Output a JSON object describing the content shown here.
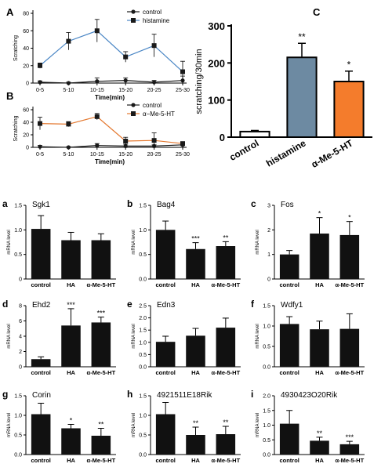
{
  "chart_data": [
    {
      "id": "A",
      "panel_label": "A",
      "type": "line",
      "x": [
        "0-5",
        "5-10",
        "10-15",
        "15-20",
        "20-25",
        "25-30"
      ],
      "xlabel": "Time(min)",
      "ylabel": "Scratching",
      "ylim": [
        0,
        80
      ],
      "yticks": [
        0,
        20,
        40,
        60,
        80
      ],
      "legend": "top-right",
      "series": [
        {
          "name": "control",
          "marker": "circle",
          "color": "#1a1a1a",
          "values": [
            1,
            0,
            2,
            3,
            1,
            3
          ],
          "errors": [
            1.5,
            1,
            4,
            3,
            2,
            5
          ]
        },
        {
          "name": "histamine",
          "marker": "square",
          "color": "#4a86c5",
          "values": [
            20,
            48,
            60,
            30,
            43,
            13
          ],
          "errors": [
            3,
            10,
            13,
            6,
            13,
            12
          ]
        }
      ]
    },
    {
      "id": "B",
      "panel_label": "B",
      "type": "line",
      "x": [
        "0-5",
        "5-10",
        "10-15",
        "15-20",
        "20-25",
        "25-30"
      ],
      "xlabel": "Time(min)",
      "ylabel": "Scratching",
      "ylim": [
        0,
        60
      ],
      "yticks": [
        0,
        20,
        40,
        60
      ],
      "legend": "top-right",
      "series": [
        {
          "name": "control",
          "marker": "circle",
          "color": "#1a1a1a",
          "values": [
            1,
            0,
            3,
            2,
            2,
            4
          ],
          "errors": [
            2,
            1,
            3,
            3,
            2,
            2
          ]
        },
        {
          "name": "α−Me-5-HT",
          "marker": "square",
          "color": "#e4782f",
          "values": [
            38,
            37,
            49,
            10,
            11,
            6
          ],
          "errors": [
            10,
            4,
            5,
            6,
            12,
            2
          ]
        }
      ]
    },
    {
      "id": "C",
      "panel_label": "C",
      "type": "bar",
      "categories": [
        "control",
        "histamine",
        "α-Me-5-HT"
      ],
      "values": [
        15,
        215,
        150
      ],
      "errors": [
        3,
        38,
        28
      ],
      "colors": [
        "#ffffff",
        "#6d8aa2",
        "#f47c2c"
      ],
      "significance": [
        "",
        "**",
        "*"
      ],
      "ylabel": "scratching/30min",
      "ylim": [
        0,
        300
      ],
      "yticks": [
        0,
        100,
        200,
        300
      ]
    },
    {
      "id": "a",
      "panel_label": "a",
      "type": "bar",
      "title": "Sgk1",
      "categories": [
        "control",
        "HA",
        "α-Me-5-HT"
      ],
      "values": [
        1.02,
        0.79,
        0.79
      ],
      "errors": [
        0.27,
        0.16,
        0.13
      ],
      "significance": [
        "",
        "",
        ""
      ],
      "ylabel": "mRNA level",
      "ylim": [
        0,
        1.5
      ],
      "yticks": [
        "0",
        "0.5",
        "1.0",
        "1.5"
      ]
    },
    {
      "id": "b",
      "panel_label": "b",
      "type": "bar",
      "title": "Bag4",
      "categories": [
        "control",
        "HA",
        "α-Me-5-HT"
      ],
      "values": [
        1.0,
        0.61,
        0.67
      ],
      "errors": [
        0.18,
        0.13,
        0.09
      ],
      "significance": [
        "",
        "***",
        "**"
      ],
      "ylabel": "mRNA level",
      "ylim": [
        0,
        1.5
      ],
      "yticks": [
        "0.0",
        "0.5",
        "1.0",
        "1.5"
      ]
    },
    {
      "id": "c",
      "panel_label": "c",
      "type": "bar",
      "title": "Fos",
      "categories": [
        "control",
        "HA",
        "α-Me-5-HT"
      ],
      "values": [
        1.0,
        1.85,
        1.79
      ],
      "errors": [
        0.16,
        0.65,
        0.55
      ],
      "significance": [
        "",
        "*",
        "*"
      ],
      "ylabel": "mRNA level",
      "ylim": [
        0,
        3
      ],
      "yticks": [
        "0",
        "1",
        "2",
        "3"
      ]
    },
    {
      "id": "d",
      "panel_label": "d",
      "type": "bar",
      "title": "Ehd2",
      "categories": [
        "control",
        "HA",
        "α-Me-5-HT"
      ],
      "values": [
        1.0,
        5.4,
        5.8
      ],
      "errors": [
        0.3,
        2.2,
        0.7
      ],
      "significance": [
        "",
        "***",
        "***"
      ],
      "ylabel": "mRNA level",
      "ylim": [
        0,
        8
      ],
      "yticks": [
        "0",
        "2",
        "4",
        "6",
        "8"
      ]
    },
    {
      "id": "e",
      "panel_label": "e",
      "type": "bar",
      "title": "Edn3",
      "categories": [
        "control",
        "HA",
        "α-Me-5-HT"
      ],
      "values": [
        1.02,
        1.27,
        1.6
      ],
      "errors": [
        0.23,
        0.3,
        0.39
      ],
      "significance": [
        "",
        "",
        ""
      ],
      "ylabel": "mRNA level",
      "ylim": [
        0,
        2.5
      ],
      "yticks": [
        "0.0",
        "0.5",
        "1.0",
        "1.5",
        "2.0",
        "2.5"
      ]
    },
    {
      "id": "f",
      "panel_label": "f",
      "type": "bar",
      "title": "Wdfy1",
      "categories": [
        "control",
        "HA",
        "α-Me-5-HT"
      ],
      "values": [
        1.05,
        0.92,
        0.93
      ],
      "errors": [
        0.18,
        0.2,
        0.37
      ],
      "significance": [
        "",
        "",
        ""
      ],
      "ylabel": "mRNA level",
      "ylim": [
        0,
        1.5
      ],
      "yticks": [
        "0.0",
        "0.5",
        "1.0",
        "1.5"
      ]
    },
    {
      "id": "g",
      "panel_label": "g",
      "type": "bar",
      "title": "Corin",
      "categories": [
        "control",
        "HA",
        "α-Me-5-HT"
      ],
      "values": [
        1.03,
        0.67,
        0.48
      ],
      "errors": [
        0.28,
        0.1,
        0.19
      ],
      "significance": [
        "",
        "*",
        "**"
      ],
      "ylabel": "mRNA level",
      "ylim": [
        0,
        1.5
      ],
      "yticks": [
        "0.0",
        "0.5",
        "1.0",
        "1.5"
      ]
    },
    {
      "id": "h",
      "panel_label": "h",
      "type": "bar",
      "title": "4921511E18Rik",
      "categories": [
        "control",
        "HA",
        "α-Me-5-HT"
      ],
      "values": [
        1.03,
        0.5,
        0.52
      ],
      "errors": [
        0.3,
        0.2,
        0.2
      ],
      "significance": [
        "",
        "**",
        "**"
      ],
      "ylabel": "mRNA level",
      "ylim": [
        0,
        1.5
      ],
      "yticks": [
        "0.0",
        "0.5",
        "1.0",
        "1.5"
      ]
    },
    {
      "id": "i",
      "panel_label": "i",
      "type": "bar",
      "title": "4930423O20Rik",
      "categories": [
        "control",
        "HA",
        "α-Me-5-HT"
      ],
      "values": [
        1.05,
        0.47,
        0.35
      ],
      "errors": [
        0.45,
        0.12,
        0.1
      ],
      "significance": [
        "",
        "**",
        "***"
      ],
      "ylabel": "mRNA level",
      "ylim": [
        0,
        2
      ],
      "yticks": [
        "0.0",
        "0.5",
        "1.0",
        "1.5",
        "2.0"
      ]
    }
  ]
}
